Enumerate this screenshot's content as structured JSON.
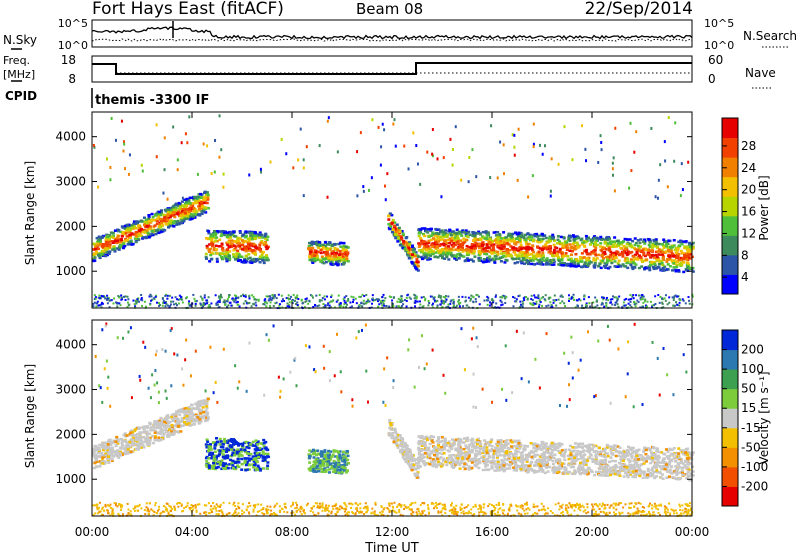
{
  "header": {
    "station": "Fort Hays East (fitACF)",
    "beam": "Beam 08",
    "date": "22/Sep/2014"
  },
  "top_panels": {
    "nsky_label": "N.Sky",
    "nsky_ticks": [
      "10^5",
      "10^0"
    ],
    "nsearch_label": "N.Search",
    "nsearch_ticks": [
      "10^5",
      "10^0"
    ],
    "freq_label": "Freq.",
    "freq_unit": "[MHz]",
    "freq_ticks": [
      "18",
      "8"
    ],
    "nave_label": "Nave",
    "nave_ticks": [
      "60",
      "0"
    ],
    "cpid_label": "CPID",
    "cpid_text": "themis -3300 IF"
  },
  "chart_data": [
    {
      "type": "heatmap",
      "panel": "power",
      "ylabel": "Slant Range [km]",
      "y_ticks": [
        "4000",
        "3000",
        "2000",
        "1000"
      ],
      "ylim": [
        180,
        4550
      ],
      "xlim": [
        0,
        24
      ],
      "x_ticks": [
        "00:00",
        "04:00",
        "08:00",
        "12:00",
        "16:00",
        "20:00",
        "00:00"
      ],
      "colorbar_label": "Power [dB]",
      "colorbar_ticks": [
        "28",
        "24",
        "20",
        "16",
        "12",
        "8",
        "4"
      ],
      "colors": [
        "#0000ff",
        "#2c55a8",
        "#3d8a5c",
        "#4fbf3a",
        "#b8d400",
        "#f2c000",
        "#f28000",
        "#f24000",
        "#e60000"
      ],
      "scatter_bands": [
        {
          "t_start": 0.0,
          "t_end": 4.6,
          "center_start": 1500,
          "center_end": 2600,
          "width": 500
        },
        {
          "t_start": 4.5,
          "t_end": 7.0,
          "center_start": 1600,
          "center_end": 1550,
          "width": 700
        },
        {
          "t_start": 8.6,
          "t_end": 10.2,
          "center_start": 1450,
          "center_end": 1400,
          "width": 500
        },
        {
          "t_start": 11.8,
          "t_end": 13.0,
          "center_start": 2200,
          "center_end": 1200,
          "width": 400
        },
        {
          "t_start": 13.0,
          "t_end": 24.0,
          "center_start": 1650,
          "center_end": 1350,
          "width": 700
        }
      ]
    },
    {
      "type": "heatmap",
      "panel": "velocity",
      "ylabel": "Slant Range [km]",
      "y_ticks": [
        "4000",
        "3000",
        "2000",
        "1000"
      ],
      "ylim": [
        180,
        4550
      ],
      "xlim": [
        0,
        24
      ],
      "x_ticks": [
        "00:00",
        "04:00",
        "08:00",
        "12:00",
        "16:00",
        "20:00",
        "00:00"
      ],
      "xlabel": "Time UT",
      "colorbar_label": "Velocity [m s⁻¹]",
      "colorbar_ticks": [
        "200",
        "100",
        "50",
        "15",
        "-15",
        "-50",
        "-100",
        "-200"
      ],
      "colors": [
        "#e60000",
        "#f25000",
        "#f29000",
        "#f2c000",
        "#c8c8c8",
        "#7ccc3c",
        "#3da050",
        "#2c78b0",
        "#0028d8"
      ]
    }
  ]
}
